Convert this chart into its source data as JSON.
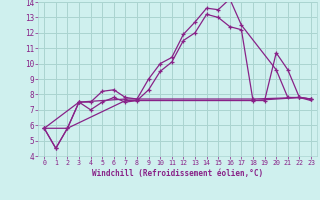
{
  "xlabel": "Windchill (Refroidissement éolien,°C)",
  "ylabel": "",
  "xlim": [
    -0.5,
    23.5
  ],
  "ylim": [
    4,
    14
  ],
  "yticks": [
    4,
    5,
    6,
    7,
    8,
    9,
    10,
    11,
    12,
    13,
    14
  ],
  "xticks": [
    0,
    1,
    2,
    3,
    4,
    5,
    6,
    7,
    8,
    9,
    10,
    11,
    12,
    13,
    14,
    15,
    16,
    17,
    18,
    19,
    20,
    21,
    22,
    23
  ],
  "bg_color": "#cff0ee",
  "grid_color": "#aad4d0",
  "line_color": "#882288",
  "series": [
    {
      "x": [
        0,
        1,
        2,
        3,
        4,
        5,
        6,
        7,
        8,
        9,
        10,
        11,
        12,
        13,
        14,
        15,
        16,
        17,
        20,
        21,
        22,
        23
      ],
      "y": [
        5.8,
        4.5,
        5.8,
        7.5,
        7.5,
        8.2,
        8.3,
        7.8,
        7.7,
        9.0,
        10.0,
        10.4,
        11.9,
        12.7,
        13.6,
        13.5,
        14.2,
        12.5,
        9.6,
        7.8,
        7.8,
        7.7
      ],
      "markers": true
    },
    {
      "x": [
        0,
        1,
        2,
        3,
        4,
        5,
        6,
        7,
        8,
        9,
        10,
        11,
        12,
        13,
        14,
        15,
        16,
        17,
        18,
        19,
        20,
        21,
        22,
        23
      ],
      "y": [
        5.8,
        4.5,
        5.8,
        7.5,
        7.0,
        7.5,
        7.8,
        7.5,
        7.6,
        8.3,
        9.5,
        10.1,
        11.5,
        12.0,
        13.2,
        13.0,
        12.4,
        12.2,
        7.6,
        7.6,
        10.7,
        9.6,
        7.8,
        7.7
      ],
      "markers": true
    },
    {
      "x": [
        0,
        3,
        7,
        18,
        22,
        23
      ],
      "y": [
        5.8,
        7.5,
        7.7,
        7.7,
        7.8,
        7.7
      ],
      "markers": true
    },
    {
      "x": [
        0,
        2,
        7,
        18,
        22,
        23
      ],
      "y": [
        5.8,
        5.8,
        7.6,
        7.6,
        7.8,
        7.6
      ],
      "markers": false
    }
  ]
}
